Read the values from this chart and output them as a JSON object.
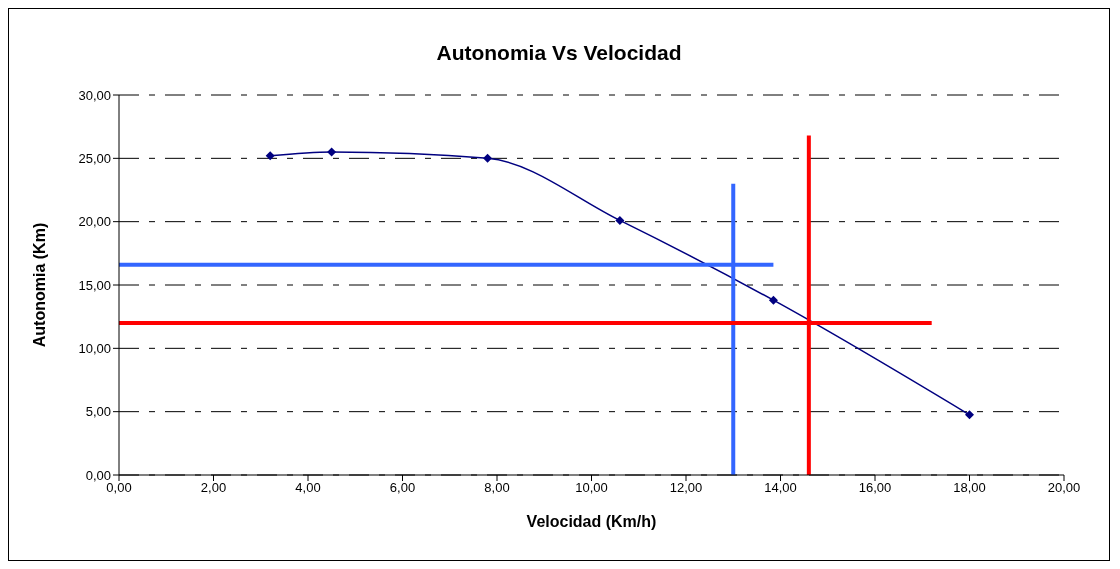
{
  "chart_data": {
    "type": "line",
    "title": "Autonomia Vs Velocidad",
    "xlabel": "Velocidad (Km/h)",
    "ylabel": "Autonomia (Km)",
    "xlim": [
      0,
      20
    ],
    "xticks": [
      {
        "value": 0,
        "label": "0,00"
      },
      {
        "value": 2,
        "label": "2,00"
      },
      {
        "value": 4,
        "label": "4,00"
      },
      {
        "value": 6,
        "label": "6,00"
      },
      {
        "value": 8,
        "label": "8,00"
      },
      {
        "value": 10,
        "label": "10,00"
      },
      {
        "value": 12,
        "label": "12,00"
      },
      {
        "value": 14,
        "label": "14,00"
      },
      {
        "value": 16,
        "label": "16,00"
      },
      {
        "value": 18,
        "label": "18,00"
      },
      {
        "value": 20,
        "label": "20,00"
      }
    ],
    "ylim": [
      0,
      30
    ],
    "yticks": [
      {
        "value": 0,
        "label": "0,00"
      },
      {
        "value": 5,
        "label": "5,00"
      },
      {
        "value": 10,
        "label": "10,00"
      },
      {
        "value": 15,
        "label": "15,00"
      },
      {
        "value": 20,
        "label": "20,00"
      },
      {
        "value": 25,
        "label": "25,00"
      },
      {
        "value": 30,
        "label": "30,00"
      }
    ],
    "grid": "y",
    "marker": "diamond",
    "series": [
      {
        "color": "#000080",
        "x": [
          3.2,
          4.5,
          7.8,
          10.6,
          13.85,
          18.0
        ],
        "values": [
          25.2,
          25.5,
          25.0,
          20.1,
          13.8,
          4.75
        ]
      },
      {
        "color": "#3366ff",
        "x": [
          0,
          13.85
        ],
        "values": [
          16.6,
          16.6
        ],
        "marker": "none"
      },
      {
        "color": "#3366ff",
        "x": [
          13.0,
          13.0
        ],
        "values": [
          0,
          23.0
        ],
        "marker": "none"
      },
      {
        "color": "#ff0000",
        "x": [
          0,
          17.2
        ],
        "values": [
          12.0,
          12.0
        ],
        "marker": "none"
      },
      {
        "color": "#ff0000",
        "x": [
          14.6,
          14.6
        ],
        "values": [
          0,
          26.8
        ],
        "marker": "none"
      }
    ]
  }
}
